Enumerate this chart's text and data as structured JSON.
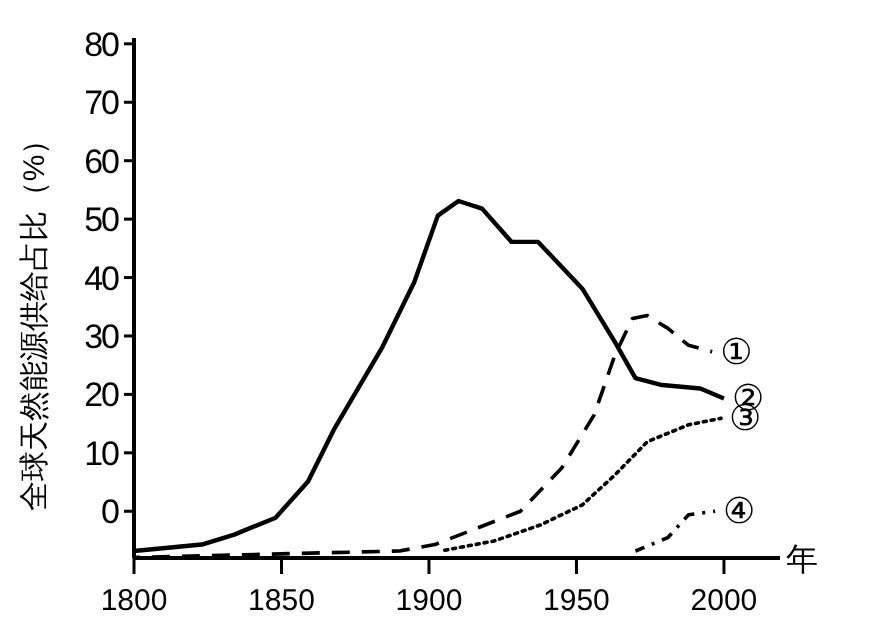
{
  "chart_data": {
    "type": "line",
    "ylabel": "全球天然能源供给占比（%）",
    "xlabel": "年",
    "xlim": [
      1800,
      2019
    ],
    "ylim": [
      -8,
      81
    ],
    "xticks": [
      1800,
      1850,
      1900,
      1950,
      2000
    ],
    "yticks": [
      0,
      10,
      20,
      30,
      40,
      50,
      60,
      70,
      80
    ],
    "grid": false,
    "marker": "none",
    "series": [
      {
        "name": "①",
        "color": "#000000",
        "line_style": "dashed",
        "x": [
          1800,
          1890,
          1902,
          1931,
          1945,
          1956,
          1963,
          1969,
          1974,
          1981,
          1988,
          1996
        ],
        "values": [
          -7.9,
          -6.8,
          -5.7,
          0,
          7.4,
          16.5,
          26.7,
          33,
          33.5,
          31.3,
          28.4,
          27.3
        ]
      },
      {
        "name": "②",
        "color": "#000000",
        "line_style": "solid",
        "x": [
          1800,
          1823,
          1834,
          1848,
          1859,
          1868,
          1884,
          1895,
          1903,
          1910,
          1918,
          1928,
          1937,
          1952,
          1963,
          1970,
          1979,
          1992,
          2000
        ],
        "values": [
          -6.8,
          -5.7,
          -4,
          -1.1,
          5.1,
          14.2,
          27.9,
          39.2,
          50.6,
          53.1,
          51.8,
          46.1,
          46.1,
          38.1,
          29,
          22.8,
          21.6,
          21,
          19.3
        ]
      },
      {
        "name": "③",
        "color": "#000000",
        "line_style": "dotted",
        "x": [
          1904,
          1922,
          1938,
          1952,
          1963,
          1974,
          1988,
          1999
        ],
        "values": [
          -6.8,
          -5.1,
          -2.3,
          1.1,
          6.2,
          11.9,
          14.8,
          15.9
        ]
      },
      {
        "name": "④",
        "color": "#000000",
        "line_style": "dashdot",
        "x": [
          1970,
          1981,
          1988,
          1997
        ],
        "values": [
          -6.8,
          -4.5,
          -0.6,
          0
        ]
      }
    ]
  }
}
